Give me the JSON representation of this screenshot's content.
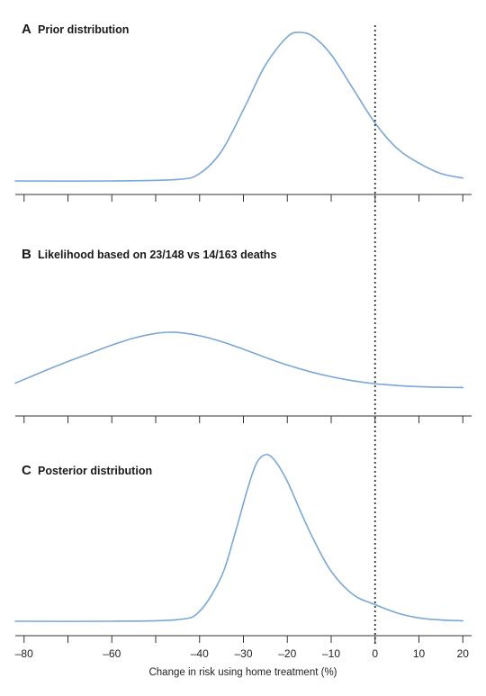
{
  "chart_data": [
    {
      "type": "line",
      "panel_letter": "A",
      "title": "Prior distribution",
      "xlabel": "",
      "ylabel": "",
      "xlim": [
        -82,
        22
      ],
      "xticks": [
        -80,
        -70,
        -60,
        -50,
        -40,
        -30,
        -20,
        -10,
        0,
        10,
        20
      ],
      "tick_labels_shown": false,
      "reference_line": {
        "x": 0,
        "style": "dotted"
      },
      "series": [
        {
          "x": [
            -82,
            -60,
            -45,
            -40,
            -35,
            -30,
            -25,
            -20,
            -17,
            -14,
            -10,
            -5,
            0,
            5,
            10,
            15,
            20
          ],
          "y": [
            0,
            0,
            0.01,
            0.05,
            0.2,
            0.48,
            0.78,
            0.97,
            1.0,
            0.97,
            0.85,
            0.62,
            0.39,
            0.22,
            0.12,
            0.05,
            0.02
          ]
        }
      ],
      "color": "#7aa7d4",
      "legend": "none",
      "grid": false
    },
    {
      "type": "line",
      "panel_letter": "B",
      "title": "Likelihood based on 23/148 vs 14/163 deaths",
      "xlabel": "",
      "ylabel": "",
      "xlim": [
        -82,
        22
      ],
      "xticks": [
        -80,
        -70,
        -60,
        -50,
        -40,
        -30,
        -20,
        -10,
        0,
        10,
        20
      ],
      "tick_labels_shown": false,
      "reference_line": {
        "x": 0,
        "style": "dotted"
      },
      "series": [
        {
          "x": [
            -82,
            -75,
            -70,
            -65,
            -60,
            -55,
            -50,
            -47,
            -44,
            -40,
            -35,
            -30,
            -25,
            -20,
            -15,
            -10,
            -5,
            0,
            5,
            10,
            15,
            20
          ],
          "y": [
            0.13,
            0.35,
            0.5,
            0.64,
            0.78,
            0.9,
            0.98,
            1.0,
            0.99,
            0.94,
            0.84,
            0.71,
            0.57,
            0.44,
            0.33,
            0.24,
            0.17,
            0.12,
            0.09,
            0.07,
            0.06,
            0.055
          ]
        }
      ],
      "color": "#7aa7d4",
      "legend": "none",
      "grid": false
    },
    {
      "type": "line",
      "panel_letter": "C",
      "title": "Posterior distribution",
      "xlabel": "Change in risk using home treatment (%)",
      "ylabel": "",
      "xlim": [
        -82,
        22
      ],
      "xticks": [
        -80,
        -70,
        -60,
        -50,
        -40,
        -30,
        -20,
        -10,
        0,
        10,
        20
      ],
      "tick_labels": [
        "–80",
        "",
        "–60",
        "",
        "–40",
        "–30",
        "–20",
        "–10",
        "0",
        "10",
        "20"
      ],
      "reference_line": {
        "x": 0,
        "style": "dotted"
      },
      "series": [
        {
          "x": [
            -82,
            -60,
            -45,
            -40,
            -35,
            -32,
            -29,
            -27,
            -25,
            -23,
            -20,
            -17,
            -14,
            -10,
            -5,
            0,
            5,
            10,
            15,
            20
          ],
          "y": [
            0,
            0,
            0.01,
            0.06,
            0.27,
            0.52,
            0.8,
            0.95,
            1.0,
            0.97,
            0.84,
            0.66,
            0.49,
            0.3,
            0.16,
            0.1,
            0.05,
            0.02,
            0.008,
            0.003
          ]
        }
      ],
      "color": "#7aa7d4",
      "legend": "none",
      "grid": false
    }
  ]
}
